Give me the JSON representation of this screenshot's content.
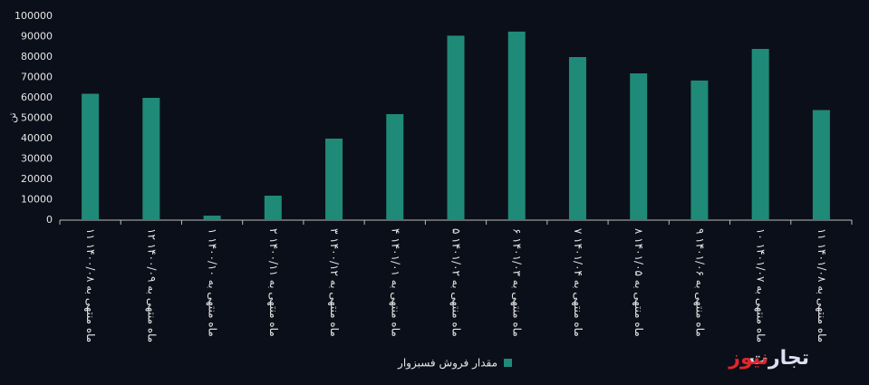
{
  "chart_data": {
    "type": "bar",
    "y_label": "تن",
    "categories": [
      "۱۱ ماه منتهی به ۱۴۰۰/۰۸",
      "۱۲ ماه منتهی به ۱۴۰۰/۰۹",
      "۱ ماه منتهی به ۱۴۰۰/۱۰",
      "۲ ماه منتهی به ۱۴۰۰/۱۱",
      "۳ ماه منتهی به ۱۴۰۰/۱۲",
      "۴ ماه منتهی به ۱۴۰۱/۰۱",
      "۵ ماه منتهی به ۱۴۰۱/۰۲",
      "۶ ماه منتهی به ۱۴۰۱/۰۳",
      "۷ ماه منتهی به ۱۴۰۱/۰۴",
      "۸ ماه منتهی به ۱۴۰۱/۰۵",
      "۹ ماه منتهی به ۱۴۰۱/۰۶",
      "۱۰ ماه منتهی به ۱۴۰۱/۰۷",
      "۱۱ ماه منتهی به ۱۴۰۱/۰۸"
    ],
    "series": [
      {
        "name": "مقدار فروش فسبزوار",
        "color": "#1f8a78",
        "values": [
          62000,
          60000,
          2200,
          12000,
          40000,
          52000,
          90500,
          92500,
          80000,
          72000,
          68500,
          84000,
          54000
        ]
      }
    ],
    "ylim": [
      0,
      100000
    ],
    "yticks": [
      0,
      10000,
      20000,
      30000,
      40000,
      50000,
      60000,
      70000,
      80000,
      90000,
      100000
    ],
    "grid": false,
    "legend": "bottom"
  },
  "watermark": {
    "part1": "تجارت",
    "part2": "نیوز"
  }
}
